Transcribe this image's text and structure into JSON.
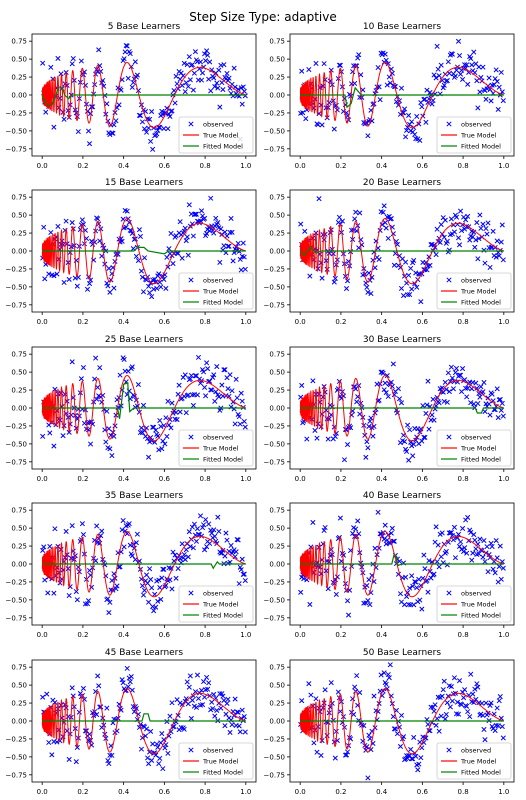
{
  "figure": {
    "title": "Step Size Type: adaptive"
  },
  "legend_labels": [
    "observed",
    "True Model",
    "Fitted Model"
  ],
  "colors": {
    "observed": "#0000ff",
    "true_model": "#ff0000",
    "fitted_model": "#008000"
  },
  "chart_data": [
    {
      "type": "line",
      "title": "5 Base Learners",
      "true_model": "0.5*sin(2*pi*(x+0.05)^-1.2 )... approximated Doppler-like signal",
      "fitted_model": {
        "x": [
          0,
          0.02,
          0.05,
          0.08,
          0.1,
          0.11,
          0.13,
          0.15,
          0.18,
          1.0
        ],
        "y": [
          0,
          -0.13,
          -0.13,
          0.1,
          0.1,
          0.0,
          -0.05,
          0.0,
          0.0,
          0.0
        ]
      },
      "xlim": [
        -0.05,
        1.05
      ],
      "ylim": [
        -0.85,
        0.85
      ],
      "xticks": [
        "0.0",
        "0.2",
        "0.4",
        "0.6",
        "0.8",
        "1.0"
      ],
      "yticks": [
        "0.75",
        "0.50",
        "0.25",
        "0.00",
        "−0.25",
        "−0.50",
        "−0.75"
      ],
      "legend": "lower-right"
    },
    {
      "type": "line",
      "title": "10 Base Learners",
      "fitted_model": {
        "x": [
          0,
          0.22,
          0.23,
          0.25,
          0.27,
          0.3,
          1.0
        ],
        "y": [
          0,
          0.0,
          -0.17,
          -0.12,
          0.1,
          0.0,
          0.0
        ]
      },
      "xlim": [
        -0.05,
        1.05
      ],
      "ylim": [
        -0.85,
        0.85
      ],
      "xticks": [
        "0.0",
        "0.2",
        "0.4",
        "0.6",
        "0.8",
        "1.0"
      ],
      "yticks": [
        "0.75",
        "0.50",
        "0.25",
        "0.00",
        "−0.25",
        "−0.50",
        "−0.75"
      ],
      "legend": "lower-right"
    },
    {
      "type": "line",
      "title": "15 Base Learners",
      "fitted_model": {
        "x": [
          0,
          0.45,
          0.47,
          0.5,
          0.52,
          0.6,
          0.62,
          1.0
        ],
        "y": [
          0,
          0.0,
          0.05,
          0.05,
          0.0,
          -0.04,
          0.0,
          0.0
        ]
      },
      "xlim": [
        -0.05,
        1.05
      ],
      "ylim": [
        -0.85,
        0.85
      ],
      "xticks": [
        "0.0",
        "0.2",
        "0.4",
        "0.6",
        "0.8",
        "1.0"
      ],
      "yticks": [
        "0.75",
        "0.50",
        "0.25",
        "0.00",
        "−0.25",
        "−0.50",
        "−0.75"
      ],
      "legend": "lower-right"
    },
    {
      "type": "line",
      "title": "20 Base Learners",
      "fitted_model": {
        "x": [
          0,
          0.02,
          0.05,
          0.08,
          0.1,
          1.0
        ],
        "y": [
          0,
          -0.06,
          0.05,
          -0.03,
          0.0,
          0.0
        ]
      },
      "xlim": [
        -0.05,
        1.05
      ],
      "ylim": [
        -0.85,
        0.85
      ],
      "xticks": [
        "0.0",
        "0.2",
        "0.4",
        "0.6",
        "0.8",
        "1.0"
      ],
      "yticks": [
        "0.75",
        "0.50",
        "0.25",
        "0.00",
        "−0.25",
        "−0.50",
        "−0.75"
      ],
      "legend": "lower-right"
    },
    {
      "type": "line",
      "title": "25 Base Learners",
      "fitted_model": {
        "x": [
          0,
          0.37,
          0.38,
          0.4,
          0.42,
          0.43,
          0.45,
          1.0
        ],
        "y": [
          0,
          0.0,
          -0.15,
          0.33,
          0.35,
          -0.05,
          0.0,
          0.0
        ]
      },
      "xlim": [
        -0.05,
        1.05
      ],
      "ylim": [
        -0.85,
        0.85
      ],
      "xticks": [
        "0.0",
        "0.2",
        "0.4",
        "0.6",
        "0.8",
        "1.0"
      ],
      "yticks": [
        "0.75",
        "0.50",
        "0.25",
        "0.00",
        "−0.25",
        "−0.50",
        "−0.75"
      ],
      "legend": "lower-right"
    },
    {
      "type": "line",
      "title": "30 Base Learners",
      "fitted_model": {
        "x": [
          0,
          0.86,
          0.87,
          0.89,
          0.9,
          1.0
        ],
        "y": [
          0,
          0.0,
          -0.07,
          -0.07,
          0.0,
          0.0
        ]
      },
      "xlim": [
        -0.05,
        1.05
      ],
      "ylim": [
        -0.85,
        0.85
      ],
      "xticks": [
        "0.0",
        "0.2",
        "0.4",
        "0.6",
        "0.8",
        "1.0"
      ],
      "yticks": [
        "0.75",
        "0.50",
        "0.25",
        "0.00",
        "−0.25",
        "−0.50",
        "−0.75"
      ],
      "legend": "lower-right"
    },
    {
      "type": "line",
      "title": "35 Base Learners",
      "fitted_model": {
        "x": [
          0,
          0.83,
          0.84,
          0.86,
          0.87,
          1.0
        ],
        "y": [
          0,
          0.0,
          -0.06,
          0.03,
          0.0,
          0.0
        ]
      },
      "xlim": [
        -0.05,
        1.05
      ],
      "ylim": [
        -0.85,
        0.85
      ],
      "xticks": [
        "0.0",
        "0.2",
        "0.4",
        "0.6",
        "0.8",
        "1.0"
      ],
      "yticks": [
        "0.75",
        "0.50",
        "0.25",
        "0.00",
        "−0.25",
        "−0.50",
        "−0.75"
      ],
      "legend": "lower-right"
    },
    {
      "type": "line",
      "title": "40 Base Learners",
      "fitted_model": {
        "x": [
          0,
          0.45,
          0.46,
          0.47,
          0.48,
          0.5,
          1.0
        ],
        "y": [
          0,
          0.0,
          0.12,
          0.12,
          -0.02,
          0.0,
          0.0
        ]
      },
      "xlim": [
        -0.05,
        1.05
      ],
      "ylim": [
        -0.85,
        0.85
      ],
      "xticks": [
        "0.0",
        "0.2",
        "0.4",
        "0.6",
        "0.8",
        "1.0"
      ],
      "yticks": [
        "0.75",
        "0.50",
        "0.25",
        "0.00",
        "−0.25",
        "−0.50",
        "−0.75"
      ],
      "legend": "lower-right"
    },
    {
      "type": "line",
      "title": "45 Base Learners",
      "fitted_model": {
        "x": [
          0,
          0.49,
          0.5,
          0.52,
          0.53,
          1.0
        ],
        "y": [
          0,
          0.0,
          0.1,
          0.1,
          0.0,
          0.0
        ]
      },
      "xlim": [
        -0.05,
        1.05
      ],
      "ylim": [
        -0.85,
        0.85
      ],
      "xticks": [
        "0.0",
        "0.2",
        "0.4",
        "0.6",
        "0.8",
        "1.0"
      ],
      "yticks": [
        "0.75",
        "0.50",
        "0.25",
        "0.00",
        "−0.25",
        "−0.50",
        "−0.75"
      ],
      "legend": "lower-right"
    },
    {
      "type": "line",
      "title": "50 Base Learners",
      "fitted_model": {
        "x": [
          0,
          1.0
        ],
        "y": [
          0,
          0.0
        ]
      },
      "xlim": [
        -0.05,
        1.05
      ],
      "ylim": [
        -0.85,
        0.85
      ],
      "xticks": [
        "0.0",
        "0.2",
        "0.4",
        "0.6",
        "0.8",
        "1.0"
      ],
      "yticks": [
        "0.75",
        "0.50",
        "0.25",
        "0.00",
        "−0.25",
        "−0.50",
        "−0.75"
      ],
      "legend": "lower-right"
    }
  ]
}
